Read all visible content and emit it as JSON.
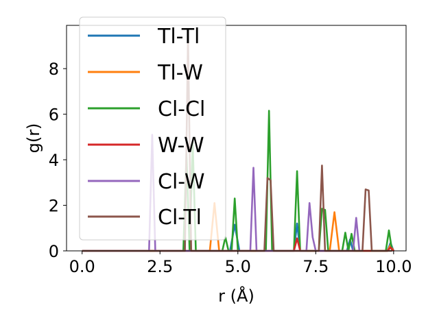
{
  "chart_data": {
    "type": "line",
    "xlabel": "r (Å)",
    "ylabel": "g(r)",
    "xlim": [
      -0.5,
      10.4
    ],
    "ylim": [
      0,
      9.9
    ],
    "xticks": [
      0.0,
      2.5,
      5.0,
      7.5,
      10.0
    ],
    "xtick_labels": [
      "0.0",
      "2.5",
      "5.0",
      "7.5",
      "10.0"
    ],
    "yticks": [
      0,
      2,
      4,
      6,
      8
    ],
    "ytick_labels": [
      "0",
      "2",
      "4",
      "6",
      "8"
    ],
    "grid": false,
    "legend_position": "top-left",
    "series": [
      {
        "name": "Tl-Tl",
        "color": "#1f77b4",
        "x": [
          0,
          4.75,
          4.9,
          5.05,
          6.8,
          6.9,
          7.0,
          8.5,
          8.6,
          8.7,
          9.8,
          9.9,
          10.0
        ],
        "y": [
          0,
          0,
          1.15,
          0,
          0,
          1.2,
          0,
          0,
          0.5,
          0,
          0,
          0.35,
          0
        ]
      },
      {
        "name": "Tl-W",
        "color": "#ff7f0e",
        "x": [
          0,
          4.1,
          4.25,
          4.4,
          7.95,
          8.1,
          8.25,
          9.8,
          9.9,
          10.0
        ],
        "y": [
          0,
          0,
          2.1,
          0,
          0,
          1.7,
          0,
          0,
          0.25,
          0
        ]
      },
      {
        "name": "Cl-Cl",
        "color": "#2ca02c",
        "x": [
          0,
          3.25,
          3.35,
          3.45,
          3.55,
          3.65,
          4.5,
          4.6,
          4.7,
          4.8,
          4.9,
          5.0,
          5.9,
          6.0,
          6.1,
          6.8,
          6.9,
          7.0,
          7.6,
          7.7,
          7.8,
          7.9,
          8.35,
          8.45,
          8.55,
          8.65,
          8.75,
          9.75,
          9.85,
          9.95
        ],
        "y": [
          0,
          0,
          4.3,
          0,
          4.8,
          0,
          0,
          0.6,
          0,
          0,
          2.3,
          0,
          0,
          6.15,
          0,
          0,
          3.5,
          0,
          0,
          1.85,
          1.8,
          0,
          0,
          0.8,
          0,
          0.75,
          0,
          0,
          0.9,
          0
        ]
      },
      {
        "name": "W-W",
        "color": "#d62728",
        "x": [
          0,
          6.8,
          6.9,
          7.0,
          9.8,
          9.9,
          10.0
        ],
        "y": [
          0,
          0,
          0.55,
          0,
          0,
          0.15,
          0
        ]
      },
      {
        "name": "Cl-W",
        "color": "#9467bd",
        "x": [
          0,
          2.15,
          2.25,
          2.35,
          5.4,
          5.5,
          5.6,
          7.2,
          7.3,
          7.4,
          7.5,
          8.7,
          8.8,
          8.9
        ],
        "y": [
          0,
          0,
          5.1,
          0,
          0,
          3.65,
          0,
          0,
          2.1,
          0.6,
          0,
          0,
          1.45,
          0
        ]
      },
      {
        "name": "Cl-Tl",
        "color": "#8c564b",
        "x": [
          0,
          3.3,
          3.4,
          3.5,
          5.85,
          5.95,
          6.05,
          6.15,
          7.6,
          7.7,
          7.8,
          9.0,
          9.1,
          9.2,
          9.3,
          9.95
        ],
        "y": [
          0,
          0,
          9.4,
          0,
          0,
          3.2,
          3.1,
          0,
          0,
          3.75,
          0,
          0,
          2.7,
          2.65,
          0,
          0
        ]
      }
    ]
  }
}
